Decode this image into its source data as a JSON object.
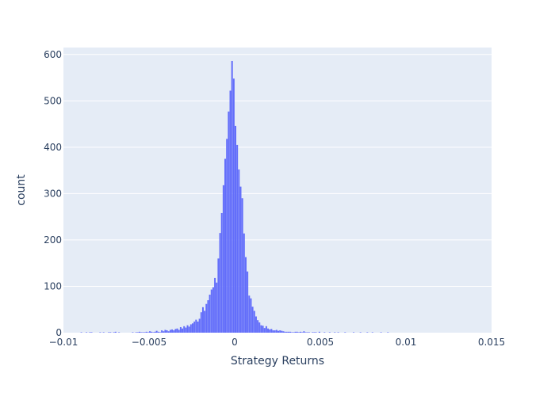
{
  "chart_data": {
    "type": "bar",
    "title": "",
    "xlabel": "Strategy Returns",
    "ylabel": "count",
    "xlim": [
      -0.01,
      0.015
    ],
    "ylim": [
      0,
      615
    ],
    "x_ticks": [
      -0.01,
      -0.005,
      0,
      0.005,
      0.01,
      0.015
    ],
    "x_tick_labels": [
      "−0.01",
      "−0.005",
      "0",
      "0.005",
      "0.01",
      "0.015"
    ],
    "y_ticks": [
      0,
      100,
      200,
      300,
      400,
      500,
      600
    ],
    "y_tick_labels": [
      "0",
      "100",
      "200",
      "300",
      "400",
      "500",
      "600"
    ],
    "grid": true,
    "legend": "none",
    "colors": {
      "bar": "#636efa",
      "plot_bg": "#e5ecf6",
      "grid": "#ffffff",
      "text": "#2a3f5f"
    },
    "bin_width": 0.0001,
    "bin_start": -0.009,
    "counts": [
      1,
      0,
      0,
      1,
      0,
      1,
      1,
      0,
      0,
      0,
      0,
      1,
      0,
      1,
      0,
      0,
      1,
      1,
      0,
      1,
      2,
      0,
      1,
      0,
      0,
      0,
      0,
      0,
      0,
      0,
      1,
      0,
      1,
      1,
      2,
      1,
      1,
      1,
      2,
      1,
      3,
      2,
      1,
      2,
      4,
      2,
      1,
      5,
      3,
      6,
      5,
      3,
      6,
      7,
      5,
      8,
      9,
      6,
      12,
      9,
      14,
      11,
      16,
      13,
      18,
      20,
      24,
      28,
      24,
      30,
      44,
      55,
      47,
      62,
      70,
      82,
      93,
      98,
      118,
      108,
      160,
      215,
      258,
      318,
      375,
      418,
      477,
      522,
      586,
      548,
      446,
      405,
      352,
      315,
      290,
      214,
      163,
      132,
      80,
      74,
      56,
      47,
      35,
      27,
      22,
      16,
      15,
      10,
      14,
      9,
      7,
      8,
      5,
      5,
      6,
      4,
      5,
      4,
      3,
      2,
      2,
      2,
      2,
      1,
      1,
      2,
      2,
      1,
      2,
      1,
      3,
      1,
      1,
      1,
      0,
      1,
      1,
      1,
      0,
      2,
      0,
      0,
      1,
      0,
      0,
      1,
      0,
      0,
      1,
      0,
      1,
      0,
      0,
      0,
      1,
      0,
      0,
      0,
      0,
      1,
      0,
      0,
      0,
      1,
      0,
      0,
      0,
      1,
      0,
      0,
      1,
      0,
      0,
      0,
      0,
      1,
      0,
      0,
      0,
      1
    ]
  }
}
